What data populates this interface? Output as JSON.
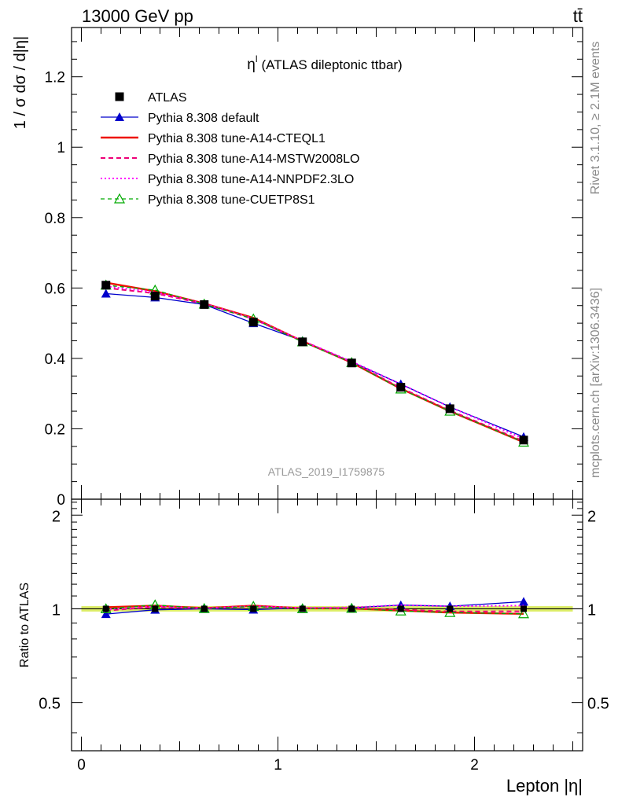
{
  "header": {
    "energy_label": "13000 GeV pp",
    "process_label": "tt̄"
  },
  "side_text": {
    "rivet": "Rivet 3.1.10, ≥ 2.1M events",
    "site": "mcplots.cern.ch [arXiv:1306.3436]"
  },
  "chart_data": [
    {
      "type": "line",
      "title": "η (ATLAS dileptonic ttbar)",
      "title_main": "η",
      "title_sup": "l",
      "title_rest": "(ATLAS dileptonic ttbar)",
      "ylabel": "1 / σ  dσ / d|η|",
      "xlabel": "Lepton |η|",
      "watermark": "ATLAS_2019_I1759875",
      "xlim": [
        -0.05,
        2.55
      ],
      "ylim": [
        0,
        1.34
      ],
      "yticks": [
        0,
        0.2,
        0.4,
        0.6,
        0.8,
        1,
        1.2
      ],
      "ytick_labels": [
        "0",
        "0.2",
        "0.4",
        "0.6",
        "0.8",
        "1",
        "1.2"
      ],
      "xticks": [
        0,
        1,
        2
      ],
      "xtick_labels": [
        "0",
        "1",
        "2"
      ],
      "legend_position": "top-left",
      "x": [
        0.125,
        0.375,
        0.625,
        0.875,
        1.125,
        1.375,
        1.625,
        1.875,
        2.25
      ],
      "series": [
        {
          "name": "ATLAS",
          "color": "#000000",
          "style": "square-markers",
          "values": [
            0.608,
            0.577,
            0.553,
            0.503,
            0.447,
            0.387,
            0.318,
            0.257,
            0.168
          ]
        },
        {
          "name": "Pythia 8.308 default",
          "color": "#0000cc",
          "style": "solid-thin-filled-triangles",
          "values": [
            0.584,
            0.573,
            0.553,
            0.5,
            0.45,
            0.39,
            0.327,
            0.262,
            0.177
          ]
        },
        {
          "name": "Pythia 8.308 tune-A14-CTEQL1",
          "color": "#ee1100",
          "style": "solid-thick",
          "values": [
            0.615,
            0.591,
            0.556,
            0.515,
            0.449,
            0.388,
            0.314,
            0.25,
            0.162
          ]
        },
        {
          "name": "Pythia 8.308 tune-A14-MSTW2008LO",
          "color": "#ee0077",
          "style": "dashed",
          "values": [
            0.6,
            0.585,
            0.555,
            0.512,
            0.448,
            0.389,
            0.316,
            0.252,
            0.165
          ]
        },
        {
          "name": "Pythia 8.308 tune-A14-NNPDF2.3LO",
          "color": "#ff00ff",
          "style": "dotted",
          "values": [
            0.605,
            0.588,
            0.556,
            0.513,
            0.45,
            0.391,
            0.327,
            0.262,
            0.172
          ]
        },
        {
          "name": "Pythia 8.308 tune-CUETP8S1",
          "color": "#00aa00",
          "style": "dashed-open-triangles",
          "values": [
            0.608,
            0.594,
            0.554,
            0.512,
            0.447,
            0.388,
            0.313,
            0.25,
            0.162
          ]
        }
      ]
    },
    {
      "type": "line",
      "ylabel": "Ratio to ATLAS",
      "ylim": [
        0.35,
        2.25
      ],
      "yticks": [
        0.5,
        1,
        2
      ],
      "ytick_labels": [
        "0.5",
        "1",
        "2"
      ],
      "band_color": "#ddee66",
      "ratio_series": [
        {
          "name": "Pythia 8.308 default",
          "values": [
            0.962,
            0.993,
            1.0,
            0.994,
            1.006,
            1.008,
            1.028,
            1.02,
            1.054
          ]
        },
        {
          "name": "Pythia 8.308 tune-A14-CTEQL1",
          "values": [
            1.012,
            1.024,
            1.005,
            1.024,
            1.004,
            1.003,
            0.987,
            0.973,
            0.964
          ]
        },
        {
          "name": "Pythia 8.308 tune-A14-MSTW2008LO",
          "values": [
            0.987,
            1.014,
            1.004,
            1.018,
            1.002,
            1.005,
            0.994,
            0.981,
            0.982
          ]
        },
        {
          "name": "Pythia 8.308 tune-A14-NNPDF2.3LO",
          "values": [
            0.995,
            1.019,
            1.005,
            1.02,
            1.007,
            1.01,
            1.028,
            1.019,
            1.024
          ]
        },
        {
          "name": "Pythia 8.308 tune-CUETP8S1",
          "values": [
            1.0,
            1.029,
            1.002,
            1.018,
            1.0,
            1.003,
            0.984,
            0.973,
            0.964
          ]
        }
      ]
    }
  ]
}
